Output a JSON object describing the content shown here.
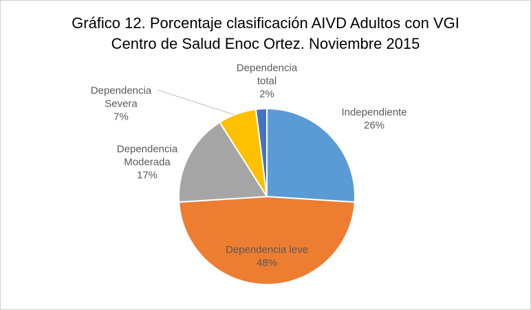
{
  "chart_data": {
    "type": "pie",
    "title": "Gráfico 12. Porcentaje clasificación AIVD Adultos con VGI Centro de Salud Enoc Ortez. Noviembre 2015",
    "categories": [
      "Independiente",
      "Dependencia leve",
      "Dependencia Moderada",
      "Dependencia Severa",
      "Dependencia total"
    ],
    "values": [
      26,
      48,
      17,
      7,
      2
    ],
    "value_labels": [
      "26%",
      "48%",
      "17%",
      "7%",
      "2%"
    ],
    "colors": [
      "#5b9bd5",
      "#ed7d31",
      "#a5a5a5",
      "#ffc000",
      "#4472c4"
    ]
  }
}
